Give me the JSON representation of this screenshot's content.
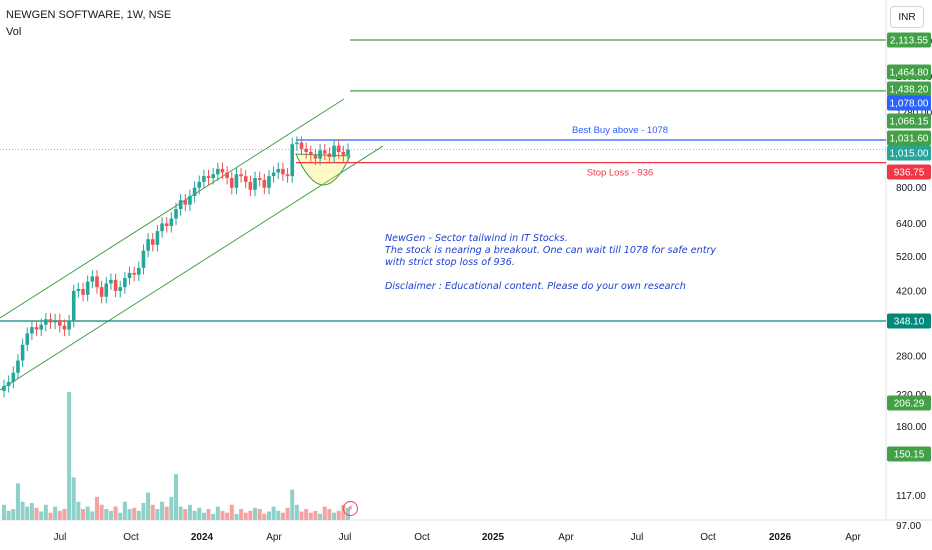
{
  "header": {
    "title": "NEWGEN SOFTWARE, 1W, NSE",
    "volume_label": "Vol"
  },
  "currency_button": "INR",
  "annotation": {
    "lines": [
      "NewGen - Sector tailwind in IT Stocks.",
      "The stock is nearing a breakout. One can wait till 1078 for safe entry",
      "with strict stop loss of 936.",
      "",
      "Disclaimer : Educational content. Please do your own research"
    ]
  },
  "chart_data": {
    "type": "candlestick",
    "title": "NEWGEN SOFTWARE, 1W, NSE",
    "y_scale": "log",
    "y_range": [
      97,
      2113.55
    ],
    "x_ticks": [
      "Jul",
      "Oct",
      "2024",
      "Apr",
      "Jul",
      "Oct",
      "2025",
      "Apr",
      "Jul",
      "Oct",
      "2026",
      "Apr"
    ],
    "y_ticks": [
      2000.0,
      1600.0,
      1280.0,
      800.0,
      640.0,
      520.0,
      420.0,
      280.0,
      220.0,
      180.0,
      117.0,
      97.0
    ],
    "price_labels": [
      {
        "value": "2,113.55",
        "color": "#43a047"
      },
      {
        "value": "1,464.80",
        "color": "#43a047"
      },
      {
        "value": "1,438.20",
        "color": "#43a047"
      },
      {
        "value": "1,078.00",
        "color": "#2962ff"
      },
      {
        "value": "1,066.15",
        "color": "#43a047"
      },
      {
        "value": "1,031.60",
        "color": "#43a047"
      },
      {
        "value": "1,015.00",
        "color": "#26a69a"
      },
      {
        "value": "936.75",
        "color": "#f23645"
      },
      {
        "value": "348.10",
        "color": "#00897b"
      },
      {
        "value": "206.29",
        "color": "#43a047"
      },
      {
        "value": "150.15",
        "color": "#43a047"
      }
    ],
    "horizontal_levels": [
      {
        "label": "",
        "value": 2113.55,
        "color": "#43a047"
      },
      {
        "label": "",
        "value": 1464.8,
        "color": "#43a047"
      },
      {
        "label": "Best Buy above - 1078",
        "value": 1078,
        "color": "#2962ff"
      },
      {
        "label": "Stop Loss - 936",
        "value": 936,
        "color": "#f23645"
      },
      {
        "label": "",
        "value": 348.1,
        "color": "#00897b"
      }
    ],
    "closes": [
      232,
      238,
      252,
      272,
      300,
      322,
      335,
      330,
      340,
      352,
      345,
      350,
      338,
      330,
      348,
      420,
      425,
      410,
      445,
      460,
      430,
      405,
      440,
      450,
      420,
      430,
      455,
      470,
      465,
      485,
      540,
      580,
      560,
      610,
      640,
      630,
      660,
      700,
      740,
      720,
      760,
      800,
      830,
      860,
      850,
      870,
      900,
      880,
      850,
      800,
      870,
      860,
      830,
      790,
      850,
      840,
      800,
      860,
      880,
      900,
      870,
      860,
      1050,
      1060,
      1020,
      1000,
      980,
      960,
      1010,
      990,
      970,
      1040,
      1000,
      980,
      1015
    ],
    "volumes": [
      25,
      15,
      18,
      60,
      30,
      22,
      28,
      20,
      14,
      25,
      12,
      22,
      15,
      18,
      210,
      70,
      30,
      18,
      22,
      14,
      38,
      25,
      18,
      15,
      22,
      12,
      30,
      18,
      20,
      15,
      28,
      45,
      25,
      18,
      30,
      22,
      38,
      75,
      22,
      18,
      25,
      15,
      20,
      12,
      18,
      10,
      22,
      15,
      12,
      25,
      10,
      18,
      12,
      15,
      20,
      18,
      10,
      14,
      22,
      15,
      12,
      20,
      50,
      25,
      14,
      18,
      12,
      15,
      10,
      22,
      18,
      12,
      15,
      25,
      20
    ],
    "colors": {
      "up": "#26a69a",
      "down": "#ef5350",
      "vol_up": "#8fd1c8",
      "vol_down": "#f5a3a1"
    }
  }
}
